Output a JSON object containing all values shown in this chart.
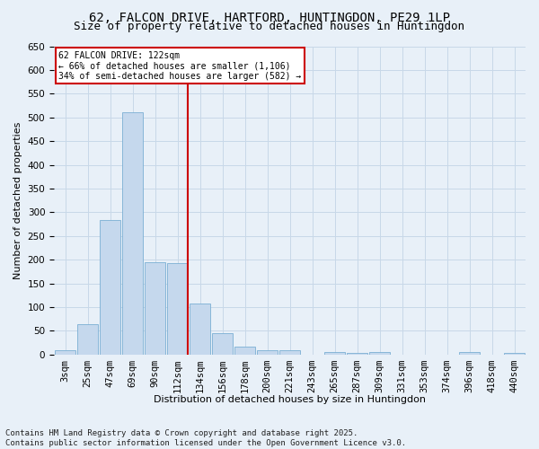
{
  "title_line1": "62, FALCON DRIVE, HARTFORD, HUNTINGDON, PE29 1LP",
  "title_line2": "Size of property relative to detached houses in Huntingdon",
  "xlabel": "Distribution of detached houses by size in Huntingdon",
  "ylabel": "Number of detached properties",
  "bin_labels": [
    "3sqm",
    "25sqm",
    "47sqm",
    "69sqm",
    "90sqm",
    "112sqm",
    "134sqm",
    "156sqm",
    "178sqm",
    "200sqm",
    "221sqm",
    "243sqm",
    "265sqm",
    "287sqm",
    "309sqm",
    "331sqm",
    "353sqm",
    "374sqm",
    "396sqm",
    "418sqm",
    "440sqm"
  ],
  "bar_values": [
    10,
    65,
    283,
    510,
    195,
    193,
    107,
    46,
    16,
    10,
    10,
    0,
    5,
    3,
    5,
    0,
    0,
    0,
    5,
    0,
    3
  ],
  "bar_color": "#c5d8ed",
  "bar_edge_color": "#7aafd4",
  "grid_color": "#c8d8e8",
  "bg_color": "#e8f0f8",
  "vline_label_index": 5,
  "vline_color": "#cc0000",
  "annotation_text": "62 FALCON DRIVE: 122sqm\n← 66% of detached houses are smaller (1,106)\n34% of semi-detached houses are larger (582) →",
  "annotation_box_color": "#ffffff",
  "annotation_border_color": "#cc0000",
  "ylim": [
    0,
    650
  ],
  "yticks": [
    0,
    50,
    100,
    150,
    200,
    250,
    300,
    350,
    400,
    450,
    500,
    550,
    600,
    650
  ],
  "footer_text": "Contains HM Land Registry data © Crown copyright and database right 2025.\nContains public sector information licensed under the Open Government Licence v3.0.",
  "title_fontsize": 10,
  "subtitle_fontsize": 9,
  "label_fontsize": 8,
  "tick_fontsize": 7.5,
  "footer_fontsize": 6.5
}
